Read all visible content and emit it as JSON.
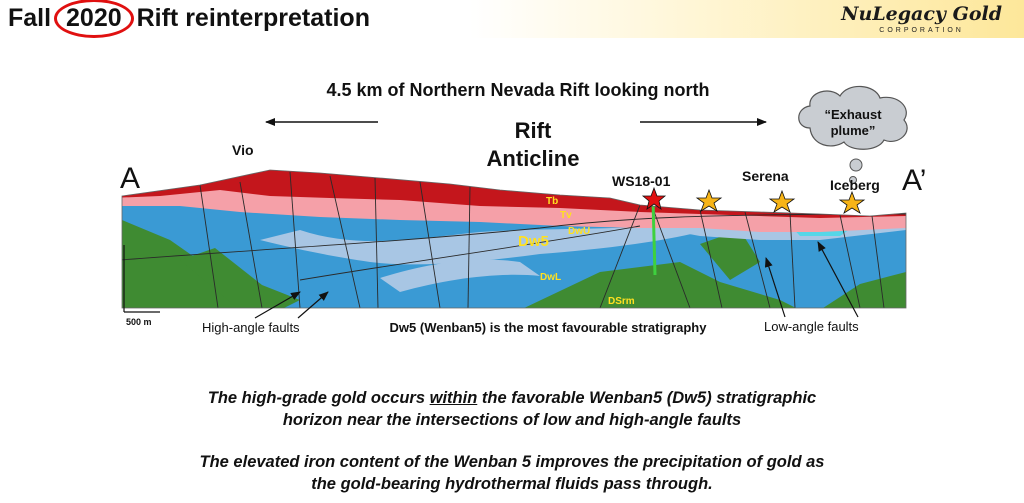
{
  "header": {
    "title_prefix": "Fall",
    "title_year": "2020",
    "title_suffix": "Rift reinterpretation",
    "logo_name": "NuLegacy Gold",
    "logo_sub": "CORPORATION"
  },
  "diagram": {
    "subtitle": "4.5 km of Northern Nevada Rift looking north",
    "rift_line1": "Rift",
    "rift_line2": "Anticline",
    "section_start": "A",
    "section_end": "A’",
    "locations": {
      "vio": "Vio",
      "ws": "WS18-01",
      "serena": "Serena",
      "iceberg": "Iceberg"
    },
    "plume_line1": "“Exhaust",
    "plume_line2": "plume”",
    "units": {
      "tb": "Tb",
      "tv": "Tv",
      "dw5": "Dw5",
      "dwu": "DwU",
      "dwl": "DwL",
      "dsrm": "DSrm"
    },
    "scale_label": "500 m",
    "fault_left": "High-angle faults",
    "fault_right": "Low-angle faults",
    "caption": "Dw5 (Wenban5) is the most favourable stratigraphy"
  },
  "notes": {
    "line1_pre": "The high-grade gold occurs ",
    "line1_em": "within",
    "line1_post": " the favorable Wenban5 (Dw5) stratigraphic",
    "line2": "horizon near the intersections of low and high-angle faults",
    "line3": "The elevated iron content of the Wenban 5 improves the precipitation of gold as",
    "line4": "the gold-bearing hydrothermal fluids pass through."
  },
  "colors": {
    "tb": "#c4161c",
    "tv": "#f5a0a8",
    "blue": "#3a9ad4",
    "dw5": "#a8c6e4",
    "green": "#3f8b32",
    "star": "#f7b417",
    "accent": "#e01010"
  }
}
